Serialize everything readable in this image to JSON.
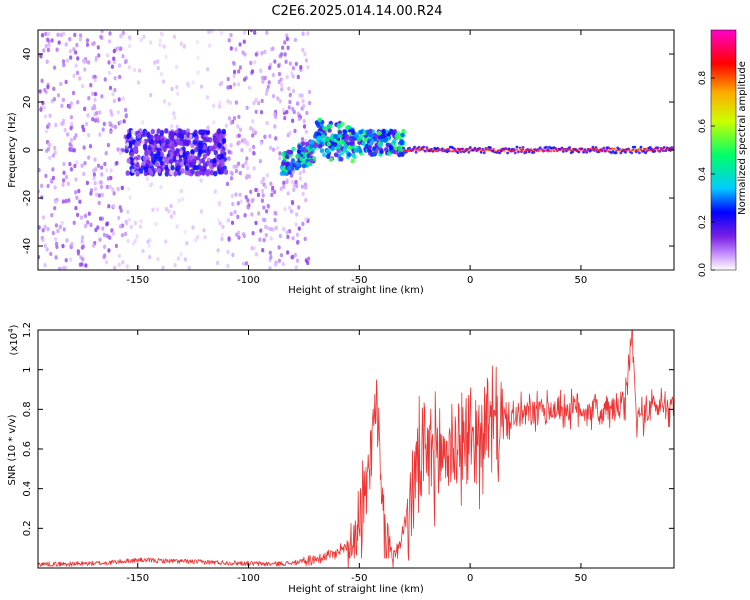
{
  "figure": {
    "title": "C2E6.2025.014.14.00.R24"
  },
  "chart_data": [
    {
      "type": "heatmap",
      "xlabel": "Height of straight line (km)",
      "ylabel": "Frequency (Hz)",
      "xlim": [
        -195,
        92
      ],
      "ylim": [
        -50,
        50
      ],
      "xticks": [
        -150,
        -100,
        -50,
        0,
        50
      ],
      "yticks": [
        -40,
        -20,
        0,
        20,
        40
      ],
      "colorbar": {
        "label": "Normalized spectral amplitude",
        "range": [
          0,
          1
        ],
        "ticks": [
          0.0,
          0.2,
          0.4,
          0.6,
          0.8
        ],
        "colormap": [
          "#ffffff",
          "#cc99ff",
          "#7a1fe6",
          "#0000ff",
          "#00ccff",
          "#00ff66",
          "#ccff00",
          "#ffaa00",
          "#ff0000",
          "#ff00cc"
        ]
      },
      "regions": [
        {
          "x": [
            -195,
            -155
          ],
          "freq_spread": [
            -50,
            50
          ],
          "amplitude": [
            0.05,
            0.2
          ],
          "density": "dense"
        },
        {
          "x": [
            -155,
            -110
          ],
          "freq_spread": [
            -10,
            8
          ],
          "amplitude": [
            0.15,
            0.35
          ],
          "density": "dense core"
        },
        {
          "x": [
            -155,
            -110
          ],
          "freq_spread": [
            -50,
            50
          ],
          "amplitude": [
            0.03,
            0.08
          ],
          "density": "sparse"
        },
        {
          "x": [
            -110,
            -72
          ],
          "freq_spread": [
            -50,
            50
          ],
          "amplitude": [
            0.05,
            0.2
          ],
          "density": "dense"
        },
        {
          "x": [
            -85,
            -30
          ],
          "freq_spread": [
            -15,
            10
          ],
          "amplitude": [
            0.2,
            0.6
          ],
          "density": "structured"
        },
        {
          "x": [
            -30,
            92
          ],
          "freq_center": 0,
          "amplitude": [
            0.8,
            1.0
          ],
          "density": "narrow line"
        }
      ],
      "grid": false
    },
    {
      "type": "line",
      "xlabel": "Height of straight line (km)",
      "ylabel": "SNR (10 * v/v)",
      "y_multiplier": "(x10^4)",
      "y_multiplier_base": "(x10",
      "y_multiplier_exp": "4",
      "y_multiplier_close": ")",
      "xlim": [
        -195,
        92
      ],
      "ylim": [
        0,
        1.2
      ],
      "xticks": [
        -150,
        -100,
        -50,
        0,
        50
      ],
      "yticks": [
        0.2,
        0.4,
        0.6,
        0.8,
        1.0,
        1.2
      ],
      "series_color": "#ee3333",
      "series": [
        {
          "x": [
            -195,
            -180,
            -165,
            -150,
            -135,
            -120,
            -105,
            -90,
            -80,
            -72,
            -65,
            -60,
            -55,
            -50,
            -47,
            -45,
            -43,
            -41,
            -40,
            -38,
            -35,
            -33,
            -30,
            -27,
            -25,
            -22,
            -20,
            -18,
            -15,
            -12,
            -10,
            -5,
            0,
            5,
            10,
            15,
            20,
            25,
            30,
            35,
            40,
            45,
            50,
            55,
            60,
            65,
            70,
            73,
            75,
            80,
            85,
            92
          ],
          "values": [
            0.02,
            0.02,
            0.025,
            0.04,
            0.035,
            0.03,
            0.025,
            0.02,
            0.025,
            0.04,
            0.06,
            0.08,
            0.12,
            0.25,
            0.35,
            0.55,
            0.94,
            0.6,
            0.3,
            0.15,
            0.06,
            0.08,
            0.2,
            0.35,
            0.45,
            0.55,
            0.5,
            0.6,
            0.55,
            0.58,
            0.6,
            0.62,
            0.65,
            0.68,
            0.72,
            0.74,
            0.76,
            0.78,
            0.78,
            0.8,
            0.8,
            0.8,
            0.8,
            0.8,
            0.78,
            0.8,
            0.82,
            1.2,
            0.75,
            0.8,
            0.82,
            0.82
          ]
        }
      ],
      "grid": false
    }
  ]
}
